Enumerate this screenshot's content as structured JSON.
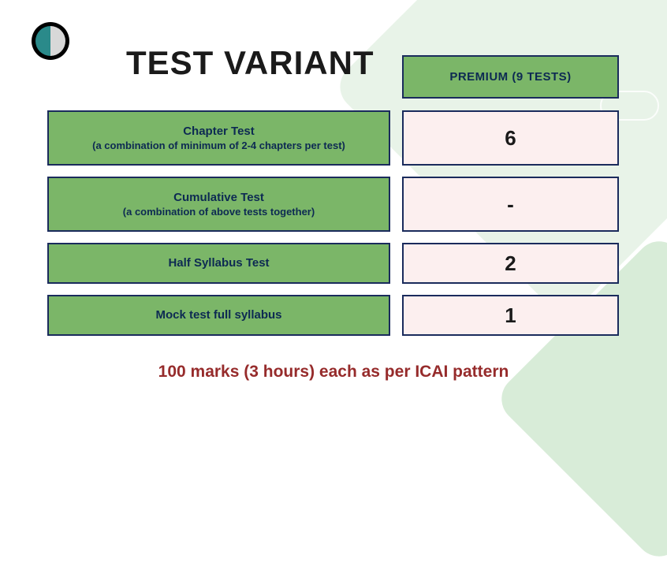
{
  "heading": "TEST VARIANT",
  "column_header": "PREMIUM (9 TESTS)",
  "rows": [
    {
      "title": "Chapter Test",
      "subtitle": "(a combination of minimum of 2-4 chapters per test)",
      "value": "6"
    },
    {
      "title": "Cumulative Test",
      "subtitle": "(a combination of above tests together)",
      "value": "-"
    },
    {
      "title": "Half Syllabus Test",
      "subtitle": "",
      "value": "2"
    },
    {
      "title": "Mock test full syllabus",
      "subtitle": "",
      "value": "1"
    }
  ],
  "footer": "100 marks (3 hours) each as per ICAI pattern",
  "colors": {
    "green_cell": "#7bb668",
    "pink_cell": "#fcefef",
    "border": "#1a2b5c",
    "text_dark": "#0d2a52",
    "footer_text": "#962b2b",
    "bg_light_green": "#e8f3e8"
  }
}
